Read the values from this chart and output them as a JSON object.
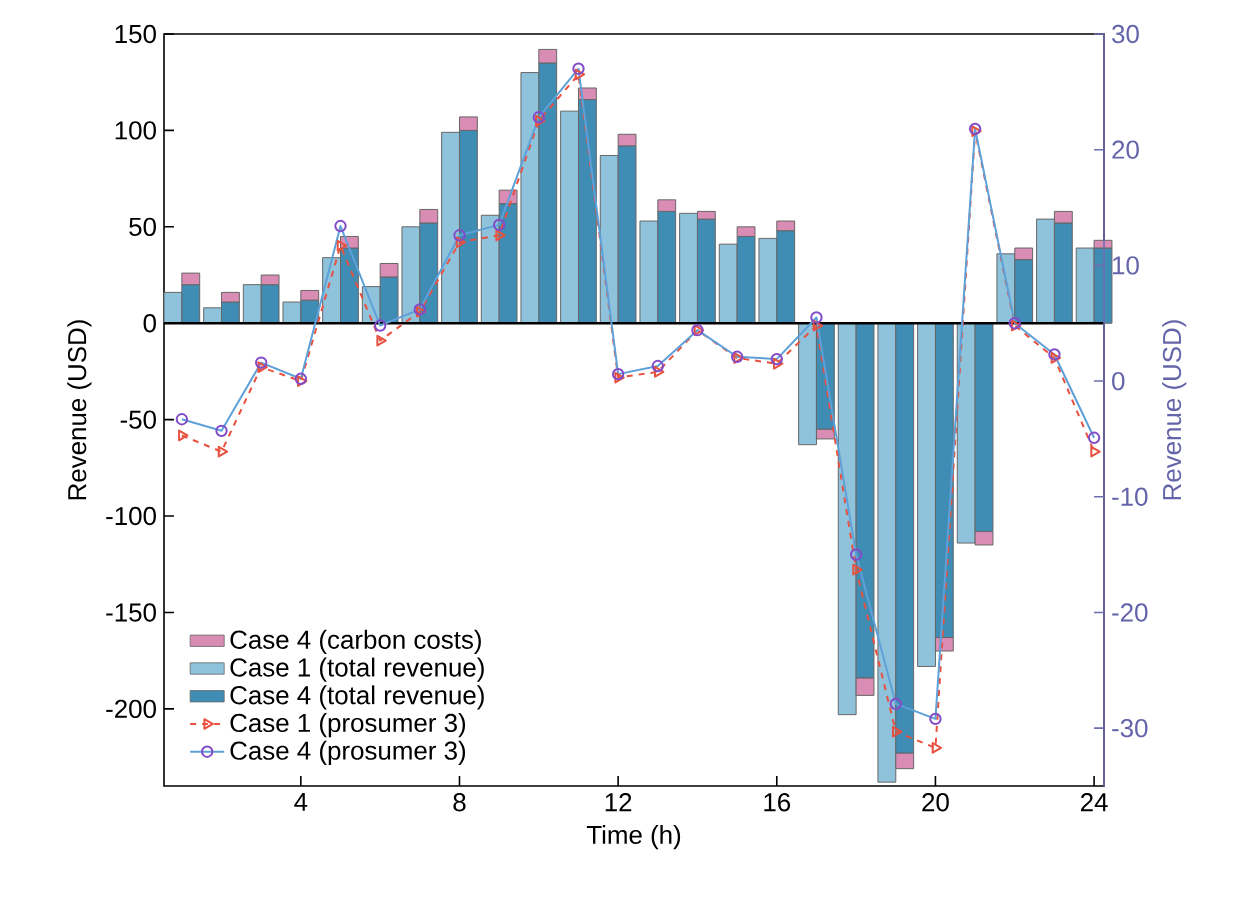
{
  "chart_data": {
    "type": "bar",
    "xlabel": "Time (h)",
    "ylabel": "Revenue (USD)",
    "y2label": "Revenue (USD)",
    "x": [
      1,
      2,
      3,
      4,
      5,
      6,
      7,
      8,
      9,
      10,
      11,
      12,
      13,
      14,
      15,
      16,
      17,
      18,
      19,
      20,
      21,
      22,
      23,
      24
    ],
    "xlim": [
      0.55,
      24.25
    ],
    "xticks": [
      4,
      8,
      12,
      16,
      20,
      24
    ],
    "ylim": [
      -240,
      150
    ],
    "yticks": [
      -200,
      -150,
      -100,
      -50,
      0,
      50,
      100,
      150
    ],
    "y2lim": [
      -35,
      30
    ],
    "y2ticks": [
      -30,
      -20,
      -10,
      0,
      10,
      20,
      30
    ],
    "legend": "bottom left",
    "ref_lines": [
      {
        "axis": "y",
        "value": 0,
        "color": "#000000"
      }
    ],
    "series": [
      {
        "name": "Case 4 (carbon costs)",
        "color": "#d98cb4",
        "base": [
          20,
          11,
          20,
          12,
          39,
          24,
          52,
          100,
          62,
          135,
          116,
          92,
          58,
          54,
          45,
          48,
          -55,
          -184,
          -223,
          -163,
          -108,
          33,
          52,
          39
        ],
        "values": [
          6,
          5,
          5,
          5,
          6,
          7,
          7,
          7,
          7,
          7,
          6,
          6,
          6,
          4,
          5,
          5,
          -5,
          -9,
          -8,
          -7,
          -7,
          6,
          6,
          4
        ]
      },
      {
        "name": "Case 1 (total revenue)",
        "color": "#8fc3dc",
        "values": [
          16,
          8,
          20,
          11,
          34,
          19,
          50,
          99,
          56,
          130,
          110,
          87,
          53,
          57,
          41,
          44,
          -63,
          -203,
          -238,
          -178,
          -114,
          36,
          54,
          39
        ]
      },
      {
        "name": "Case 4 (total revenue)",
        "color": "#3f8cb5",
        "values": [
          20,
          11,
          20,
          12,
          39,
          24,
          52,
          100,
          62,
          135,
          116,
          92,
          58,
          54,
          45,
          48,
          -55,
          -184,
          -223,
          -163,
          -108,
          33,
          52,
          39
        ]
      },
      {
        "name": "Case 1 (prosumer 3)",
        "type": "line",
        "axis": "y2",
        "color": "#e8503f",
        "marker": "triangle",
        "line_style": "dashed",
        "values": [
          -4.7,
          -6.1,
          1.2,
          0,
          11.7,
          3.5,
          6,
          12,
          12.6,
          22.5,
          26.5,
          0.3,
          0.8,
          4.4,
          2,
          1.5,
          4.8,
          -16.3,
          -30.3,
          -31.7,
          21.6,
          4.8,
          2,
          -6.1
        ]
      },
      {
        "name": "Case 4 (prosumer 3)",
        "type": "line",
        "axis": "y2",
        "color": "#5ea0d8",
        "marker": "circle",
        "line_style": "solid",
        "values": [
          -3.3,
          -4.3,
          1.6,
          0.2,
          13.4,
          4.8,
          6.2,
          12.6,
          13.5,
          22.8,
          27,
          0.6,
          1.3,
          4.4,
          2.1,
          1.9,
          5.5,
          -15,
          -27.9,
          -29.2,
          21.8,
          5,
          2.3,
          -4.9
        ]
      }
    ]
  }
}
